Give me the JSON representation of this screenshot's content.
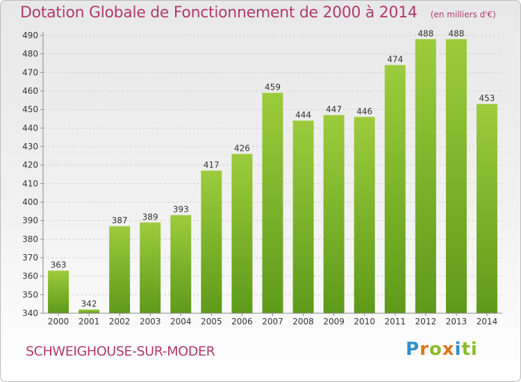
{
  "header": {
    "title": "Dotation Globale de Fonctionnement de 2000 à 2014",
    "unit": "(en milliers d'€)"
  },
  "footer": {
    "commune": "SCHWEIGHOUSE-SUR-MODER",
    "logo": [
      "P",
      "r",
      "o",
      "x",
      "i",
      "ti"
    ]
  },
  "colors": {
    "bar_top": "#9ccc3c",
    "bar_bottom": "#5e9a1a",
    "title": "#b03a6d"
  },
  "chart_data": {
    "type": "bar",
    "title": "Dotation Globale de Fonctionnement de 2000 à 2014",
    "subtitle": "(en milliers d'€)",
    "categories": [
      "2000",
      "2001",
      "2002",
      "2003",
      "2004",
      "2005",
      "2006",
      "2007",
      "2008",
      "2009",
      "2010",
      "2011",
      "2012",
      "2013",
      "2014"
    ],
    "values": [
      363,
      342,
      387,
      389,
      393,
      417,
      426,
      459,
      444,
      447,
      446,
      474,
      488,
      488,
      453
    ],
    "ylim": [
      340,
      490
    ],
    "yticks": [
      340,
      350,
      360,
      370,
      380,
      390,
      400,
      410,
      420,
      430,
      440,
      450,
      460,
      470,
      480,
      490
    ],
    "grid": true,
    "xlabel": "",
    "ylabel": ""
  }
}
